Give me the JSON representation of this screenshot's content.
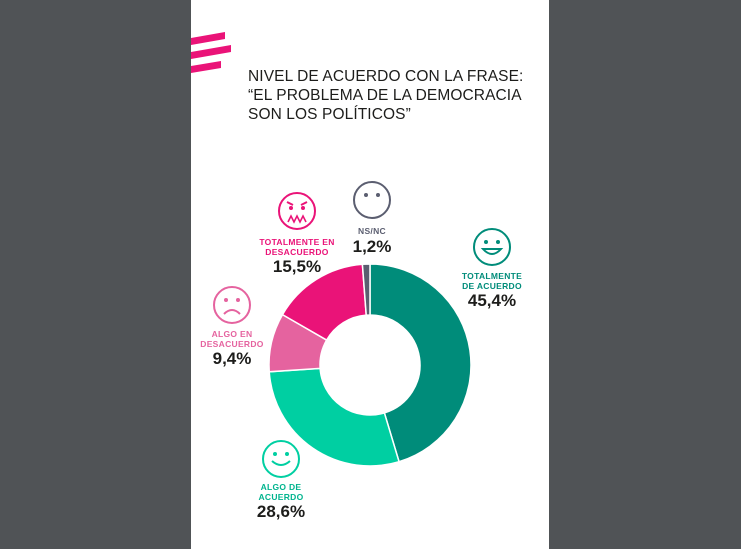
{
  "title": {
    "line1": "NIVEL DE ACUERDO CON LA FRASE:",
    "line2": "“EL PROBLEMA DE LA DEMOCRACIA",
    "line3": "SON LOS POLÍTICOS”"
  },
  "labels": {
    "totalmente_acuerdo": {
      "line1": "TOTALMENTE",
      "line2": "DE ACUERDO",
      "pct": "45,4%"
    },
    "algo_acuerdo": {
      "line1": "ALGO DE",
      "line2": "ACUERDO",
      "pct": "28,6%"
    },
    "algo_desacuerdo": {
      "line1": "ALGO EN",
      "line2": "DESACUERDO",
      "pct": "9,4%"
    },
    "totalmente_desacuerdo": {
      "line1": "TOTALMENTE EN",
      "line2": "DESACUERDO",
      "pct": "15,5%"
    },
    "nsnc": {
      "line1": "NS/NC",
      "pct": "1,2%"
    }
  },
  "colors": {
    "totalmente_acuerdo": "#008c7a",
    "algo_acuerdo": "#00cfa2",
    "algo_desacuerdo": "#e5639f",
    "totalmente_desacuerdo": "#ea1378",
    "nsnc": "#5b5e70",
    "brand": "#ea1378"
  },
  "chart_data": {
    "type": "pie",
    "donut": true,
    "categories": [
      "TOTALMENTE DE ACUERDO",
      "ALGO DE ACUERDO",
      "ALGO EN DESACUERDO",
      "TOTALMENTE EN DESACUERDO",
      "NS/NC"
    ],
    "values": [
      45.4,
      28.6,
      9.4,
      15.5,
      1.2
    ],
    "title": "NIVEL DE ACUERDO CON LA FRASE: “EL PROBLEMA DE LA DEMOCRACIA SON LOS POLÍTICOS”"
  }
}
